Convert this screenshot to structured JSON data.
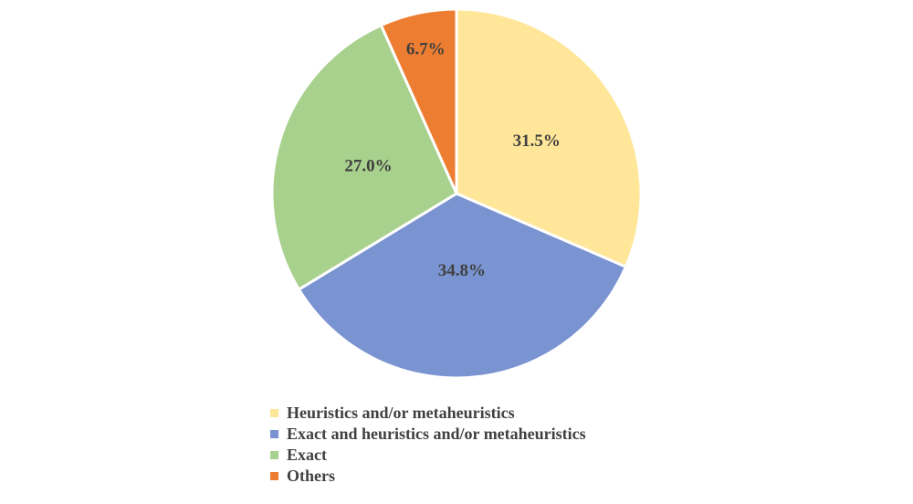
{
  "chart_data": {
    "type": "pie",
    "title": "",
    "start_angle_deg": 0,
    "direction": "clockwise",
    "slices": [
      {
        "name": "Heuristics and/or metaheuristics",
        "value": 31.5,
        "label": "31.5%",
        "color": "#FFE699"
      },
      {
        "name": "Exact and heuristics and/or metaheuristics",
        "value": 34.8,
        "label": "34.8%",
        "color": "#7A93D1"
      },
      {
        "name": "Exact",
        "value": 27.0,
        "label": "27.0%",
        "color": "#A9D18E"
      },
      {
        "name": "Others",
        "value": 6.7,
        "label": "6.7%",
        "color": "#ED7D31"
      }
    ],
    "legend_position": "bottom",
    "label_color": "#404040",
    "slice_border_color": "#FFFFFF"
  }
}
